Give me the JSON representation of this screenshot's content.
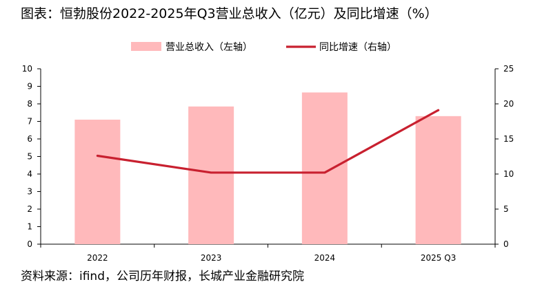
{
  "header": {
    "title": "图表：恒勃股份2022-2025年Q3营业总收入（亿元）及同比增速（%）"
  },
  "footer": {
    "source": "资料来源：ifind，公司历年财报，长城产业金融研究院"
  },
  "colors": {
    "bar": "#ffb9bb",
    "line": "#c8202f",
    "axis": "#000000"
  },
  "chart_data": {
    "type": "bar",
    "categories": [
      "2022",
      "2023",
      "2024",
      "2025 Q3"
    ],
    "series": [
      {
        "name": "营业总收入（左轴）",
        "type": "bar",
        "axis": "left",
        "values": [
          7.1,
          7.85,
          8.65,
          7.3
        ]
      },
      {
        "name": "同比增速（右轴）",
        "type": "line",
        "axis": "right",
        "values": [
          12.6,
          10.2,
          10.2,
          19.1
        ]
      }
    ],
    "y_left": {
      "min": 0,
      "max": 10,
      "ticks": [
        "0",
        "1",
        "2",
        "3",
        "4",
        "5",
        "6",
        "7",
        "8",
        "9",
        "10"
      ]
    },
    "y_right": {
      "min": 0,
      "max": 25,
      "ticks": [
        "0",
        "5",
        "10",
        "15",
        "20",
        "25"
      ]
    },
    "legend": "top-center",
    "grid": false
  }
}
